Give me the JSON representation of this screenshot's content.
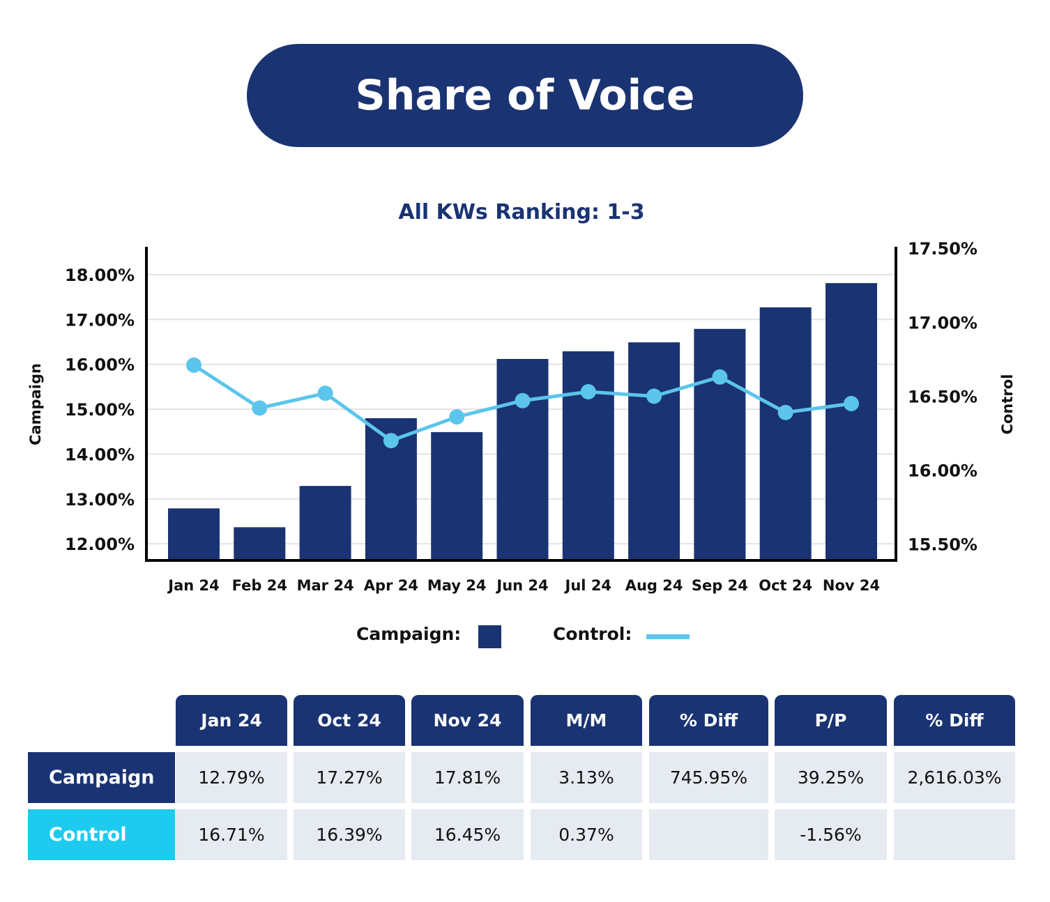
{
  "title": "Share of Voice",
  "colors": {
    "campaign": "#1a3372",
    "control": "#5bc5ec",
    "control_row": "#1ecbee",
    "cell_bg": "#e6eaf1"
  },
  "chart_data": {
    "type": "bar+line",
    "title": "All KWs Ranking: 1-3",
    "categories": [
      "Jan 24",
      "Feb 24",
      "Mar 24",
      "Apr 24",
      "May 24",
      "Jun 24",
      "Jul 24",
      "Aug 24",
      "Sep 24",
      "Oct 24",
      "Nov 24"
    ],
    "series": [
      {
        "name": "Campaign",
        "type": "bar",
        "axis": "left",
        "values": [
          12.79,
          12.37,
          13.29,
          14.8,
          14.49,
          16.12,
          16.29,
          16.49,
          16.79,
          17.27,
          17.81
        ]
      },
      {
        "name": "Control",
        "type": "line",
        "axis": "right",
        "values": [
          16.71,
          16.42,
          16.52,
          16.2,
          16.36,
          16.47,
          16.53,
          16.5,
          16.63,
          16.39,
          16.45
        ]
      }
    ],
    "y_left": {
      "label": "Campaign",
      "range": [
        11.63,
        18.62
      ],
      "ticks": [
        "12.00%",
        "13.00%",
        "14.00%",
        "15.00%",
        "16.00%",
        "17.00%",
        "18.00%"
      ],
      "tick_values": [
        12,
        13,
        14,
        15,
        16,
        17,
        18
      ]
    },
    "y_right": {
      "label": "Control",
      "range": [
        15.39,
        17.51
      ],
      "ticks": [
        "15.50%",
        "16.00%",
        "16.50%",
        "17.00%",
        "17.50%"
      ],
      "tick_values": [
        15.5,
        16,
        16.5,
        17,
        17.5
      ]
    },
    "grid": true,
    "legend": {
      "placement": "bottom",
      "campaign_label": "Campaign:",
      "control_label": "Control:"
    }
  },
  "table": {
    "headers": [
      "Jan 24",
      "Oct 24",
      "Nov 24",
      "M/M",
      "% Diff",
      "P/P",
      "% Diff"
    ],
    "rows": [
      {
        "label": "Campaign",
        "cells": [
          "12.79%",
          "17.27%",
          "17.81%",
          "3.13%",
          "745.95%",
          "39.25%",
          "2,616.03%"
        ]
      },
      {
        "label": "Control",
        "cells": [
          "16.71%",
          "16.39%",
          "16.45%",
          "0.37%",
          "",
          "-1.56%",
          ""
        ]
      }
    ]
  }
}
